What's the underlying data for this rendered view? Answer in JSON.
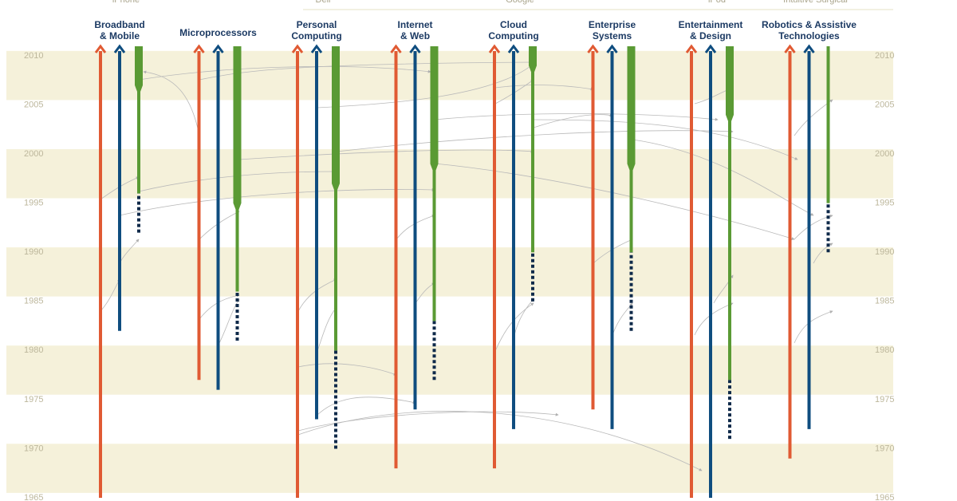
{
  "top_labels": [
    {
      "text": "iPhone",
      "column": 0
    },
    {
      "text": "Dell",
      "column": 2
    },
    {
      "text": "Google",
      "column": 4
    },
    {
      "text": "iPod",
      "column": 6
    },
    {
      "text": "Intuitive Surgical",
      "column": 7
    }
  ],
  "year_range": [
    1965,
    2010
  ],
  "year_ticks": [
    2010,
    2005,
    2000,
    1995,
    1990,
    1985,
    1980,
    1975,
    1970,
    1965
  ],
  "colors": {
    "university": "#e05a33",
    "industry_research": "#0f4d7f",
    "products": "#5a9a34",
    "pre_products": "#0f2a4a",
    "band": "#f5f1da"
  },
  "columns": [
    {
      "label": [
        "Broadband",
        "& Mobile"
      ],
      "university_start": 1965,
      "industry_start": 1982,
      "products_dashed_start": 1992,
      "products_start": 1996,
      "products_thick_start": 2007
    },
    {
      "label": [
        "Microprocessors"
      ],
      "university_start": 1977,
      "industry_start": 1976,
      "products_dashed_start": 1981,
      "products_start": 1986,
      "products_thick_start": 1995
    },
    {
      "label": [
        "Personal",
        "Computing"
      ],
      "university_start": 1965,
      "industry_start": 1973,
      "products_dashed_start": 1970,
      "products_start": 1980,
      "products_thick_start": 1997
    },
    {
      "label": [
        "Internet",
        "& Web"
      ],
      "university_start": 1968,
      "industry_start": 1974,
      "products_dashed_start": 1977,
      "products_start": 1983,
      "products_thick_start": 1999
    },
    {
      "label": [
        "Cloud",
        "Computing"
      ],
      "university_start": 1968,
      "industry_start": 1972,
      "products_dashed_start": 1985,
      "products_start": 1990,
      "products_thick_start": 2009
    },
    {
      "label": [
        "Enterprise",
        "Systems"
      ],
      "university_start": 1974,
      "industry_start": 1972,
      "products_dashed_start": 1982,
      "products_start": 1990,
      "products_thick_start": 1999
    },
    {
      "label": [
        "Entertainment",
        "& Design"
      ],
      "university_start": 1965,
      "industry_start": 1965,
      "products_dashed_start": 1971,
      "products_start": 1977,
      "products_thick_start": 2004
    },
    {
      "label": [
        "Robotics & Assistive",
        "Technologies"
      ],
      "university_start": 1969,
      "industry_start": 1972,
      "products_dashed_start": 1990,
      "products_start": 1995,
      "products_thick_start": null
    }
  ]
}
